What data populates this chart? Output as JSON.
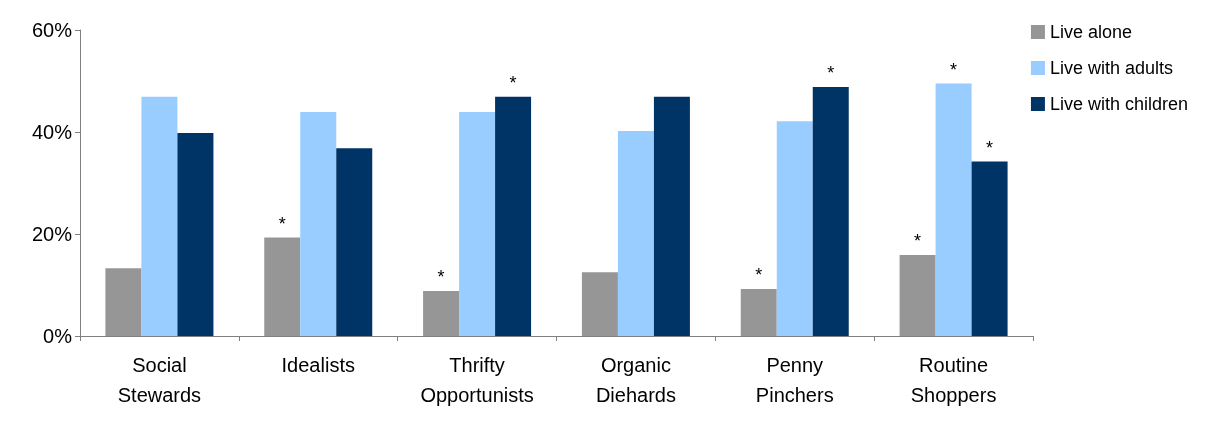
{
  "chart_data": {
    "type": "bar",
    "categories": [
      "Social\nStewards",
      "Idealists",
      "Thrifty\nOpportunists",
      "Organic\nDiehards",
      "Penny\nPinchers",
      "Routine\nShoppers"
    ],
    "series": [
      {
        "name": "Live alone",
        "color": "#969696",
        "values": [
          13.3,
          19.3,
          8.8,
          12.5,
          9.2,
          15.9
        ],
        "value_labels": [
          null,
          "*",
          "*",
          null,
          "*",
          "*"
        ]
      },
      {
        "name": "Live with adults",
        "color": "#99ccff",
        "values": [
          46.9,
          43.9,
          43.9,
          40.2,
          42.1,
          49.5
        ],
        "value_labels": [
          null,
          null,
          null,
          null,
          null,
          "*"
        ]
      },
      {
        "name": "Live with children",
        "color": "#003366",
        "values": [
          39.8,
          36.8,
          46.9,
          46.9,
          48.8,
          34.2
        ],
        "value_labels": [
          null,
          null,
          "*",
          null,
          "*",
          "*"
        ]
      }
    ],
    "ylim": [
      0,
      60
    ],
    "yticks": [
      {
        "value": 0,
        "label": "0%"
      },
      {
        "value": 20,
        "label": "20%"
      },
      {
        "value": 40,
        "label": "40%"
      },
      {
        "value": 60,
        "label": "60%"
      }
    ],
    "grid": false,
    "legend": "top right"
  }
}
